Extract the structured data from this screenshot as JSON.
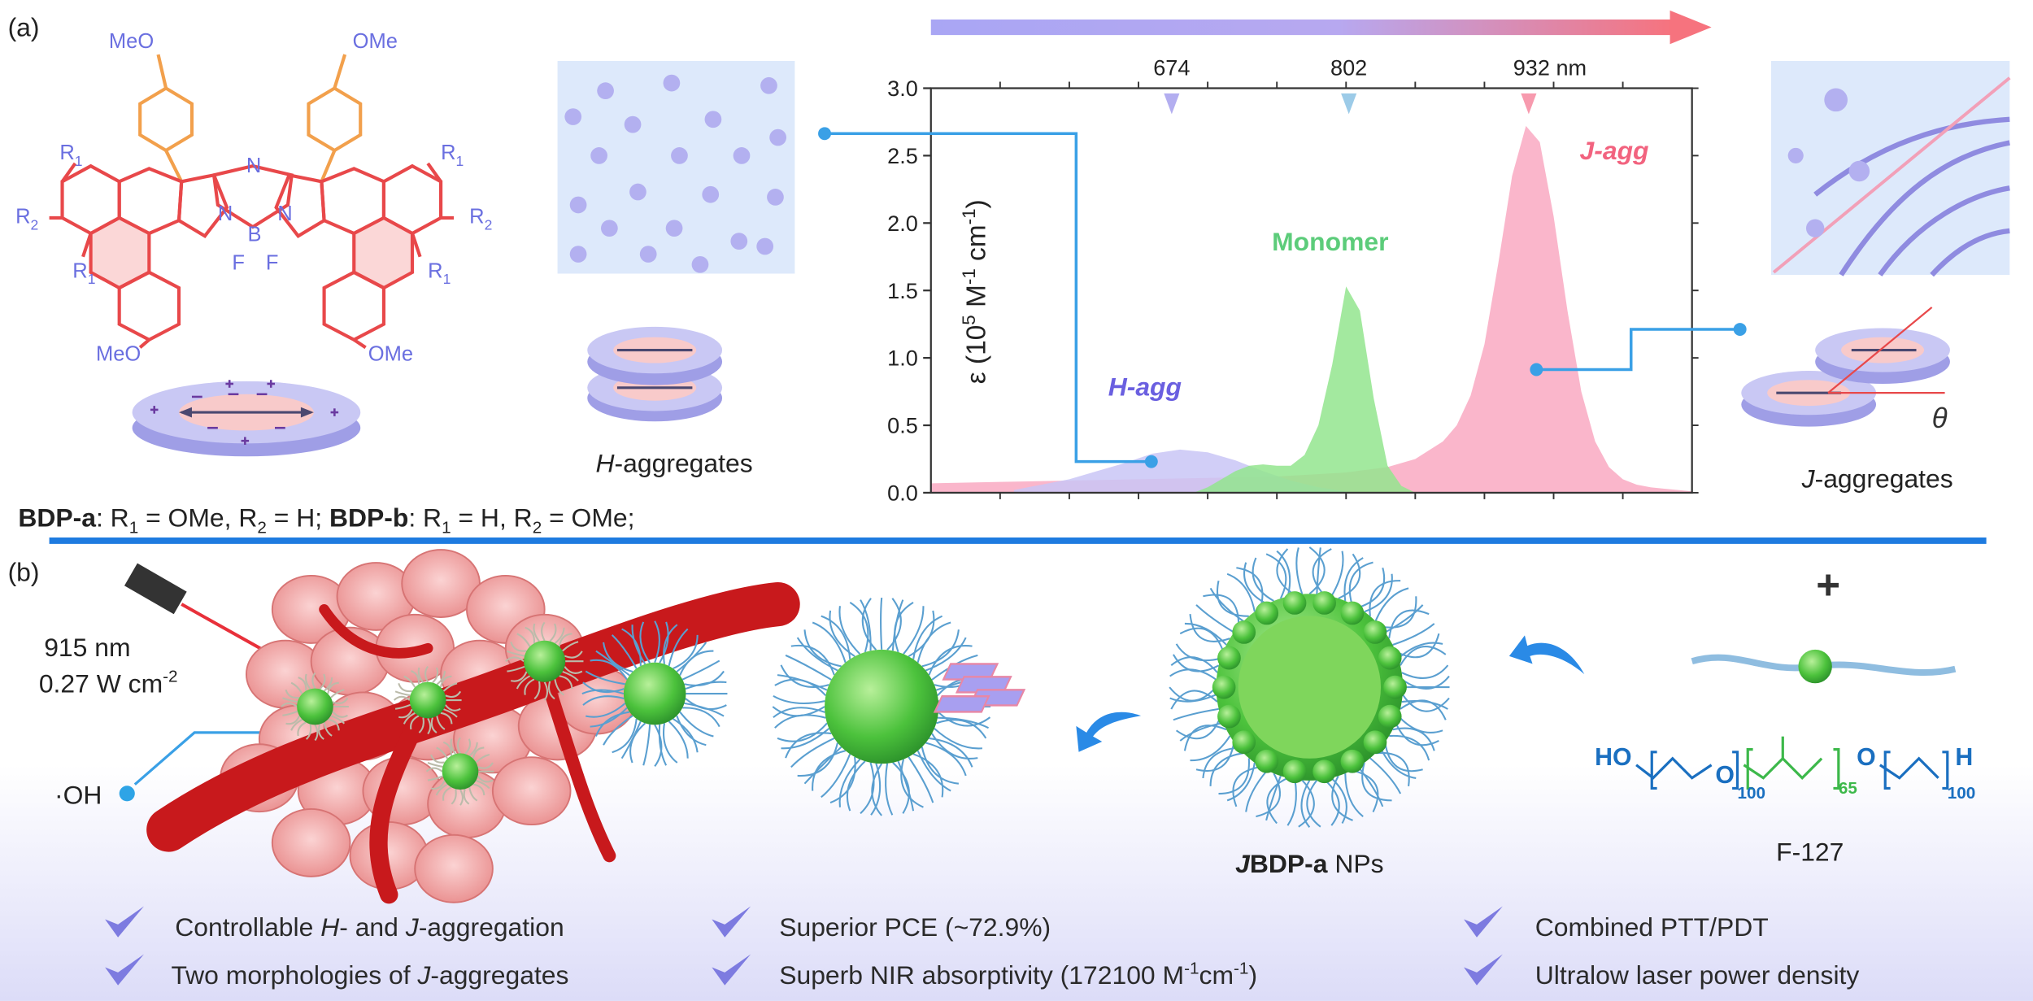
{
  "panel_a": {
    "label": "(a)",
    "structure": {
      "methoxy": [
        "MeO",
        "OMe",
        "MeO",
        "OMe"
      ],
      "substituents": [
        [
          "R",
          "1"
        ],
        [
          "R",
          "2"
        ],
        [
          "R",
          "1"
        ],
        [
          "R",
          "1"
        ],
        [
          "R",
          "2"
        ],
        [
          "R",
          "1"
        ]
      ],
      "atoms": [
        "N",
        "N",
        "N",
        "B",
        "F",
        "F"
      ]
    },
    "h_aggregates": [
      "H",
      "-aggregates"
    ],
    "j_aggregates": [
      "J",
      "-aggregates"
    ],
    "theta": "θ",
    "compound_line": [
      "BDP-a",
      ": R",
      "1",
      " = OMe, R",
      "2",
      " = H; ",
      "BDP-b",
      ": R",
      "1",
      " = H, R",
      "2",
      " = OMe;"
    ],
    "chart_data": {
      "type": "area",
      "y_label": [
        "ε (10",
        "5",
        " M",
        "-1",
        " cm",
        "-1",
        ")"
      ],
      "xlim": [
        500,
        1050
      ],
      "xticks": [
        550,
        600,
        650,
        700,
        750,
        800,
        850,
        900,
        950,
        1000
      ],
      "ylim": [
        0,
        3
      ],
      "yticks": [
        {
          "value": 0,
          "label": "0.0"
        },
        0.5,
        {
          "value": 1,
          "label": "1.0"
        },
        1.5,
        {
          "value": 2,
          "label": "2.0"
        },
        2.5,
        {
          "value": 3,
          "label": "3.0"
        }
      ],
      "peak_markers": [
        674,
        802,
        {
          "value": 932,
          "label": "932 nm"
        }
      ],
      "peak_marker_colors": [
        "#b3aef0",
        "#9ccbe8",
        "#f79aae"
      ],
      "series": [
        {
          "name": "H-agg",
          "color": "#c9c6f6",
          "x": [
            560,
            580,
            600,
            620,
            640,
            660,
            680,
            700,
            720,
            740,
            760,
            780,
            800
          ],
          "values": [
            0.02,
            0.06,
            0.1,
            0.16,
            0.22,
            0.29,
            0.32,
            0.3,
            0.24,
            0.16,
            0.09,
            0.04,
            0.01
          ]
        },
        {
          "name": "Monomer",
          "color": "#93e58e",
          "x": [
            690,
            700,
            710,
            720,
            730,
            740,
            750,
            760,
            770,
            780,
            790,
            800,
            810,
            820,
            830,
            840,
            850
          ],
          "values": [
            0,
            0.04,
            0.1,
            0.16,
            0.2,
            0.21,
            0.2,
            0.2,
            0.28,
            0.5,
            0.95,
            1.53,
            1.35,
            0.7,
            0.2,
            0.05,
            0
          ]
        },
        {
          "name": "J-agg",
          "color": "#f9a9c2",
          "x": [
            500,
            550,
            600,
            650,
            700,
            750,
            800,
            830,
            850,
            870,
            880,
            890,
            900,
            910,
            920,
            930,
            940,
            950,
            960,
            970,
            980,
            990,
            1000,
            1010,
            1020,
            1030,
            1040,
            1050
          ],
          "values": [
            0.07,
            0.08,
            0.09,
            0.1,
            0.11,
            0.12,
            0.15,
            0.19,
            0.25,
            0.38,
            0.5,
            0.72,
            1.1,
            1.7,
            2.35,
            2.72,
            2.6,
            2.05,
            1.35,
            0.75,
            0.38,
            0.19,
            0.1,
            0.06,
            0.04,
            0.03,
            0.02,
            0.01
          ]
        }
      ]
    }
  },
  "panel_b": {
    "label": "(b)",
    "laser": [
      "915 nm",
      "0.27 W cm",
      "-2"
    ],
    "hydroxyl": "·OH",
    "nanoparticle": [
      "J",
      "BDP-a",
      " NPs"
    ],
    "plus": "+",
    "polymer_name": "F-127",
    "polymer_formula": [
      "HO",
      "O",
      "100",
      "65",
      "O",
      "100",
      "H"
    ]
  },
  "highlights": [
    [
      "Controllable ",
      "H",
      "- and ",
      "J",
      "-aggregation"
    ],
    [
      "Two morphologies of ",
      "J",
      "-aggregates"
    ],
    [
      "Superior PCE (~72.9%)"
    ],
    [
      "Superb NIR  absorptivity (172100 M",
      "-1",
      "cm",
      "-1",
      ")"
    ],
    [
      "Combined PTT/PDT"
    ],
    [
      "Ultralow laser power density"
    ]
  ]
}
